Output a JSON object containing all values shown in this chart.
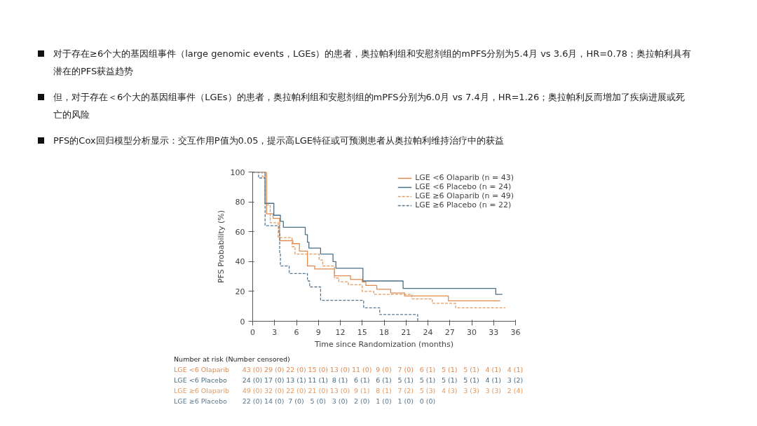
{
  "chart_data": {
    "type": "step",
    "xlabel": "Time since Randomization (months)",
    "ylabel": "PFS Probability (%)",
    "xlim": [
      0,
      36
    ],
    "xticks": [
      0,
      3,
      6,
      9,
      12,
      15,
      18,
      21,
      24,
      27,
      30,
      33,
      36
    ],
    "ylim": [
      0,
      100
    ],
    "yticks": [
      0,
      20,
      40,
      60,
      80,
      100
    ],
    "grid": false,
    "legend": "top right",
    "marker": "none",
    "series": [
      {
        "name": "LGE <6 Olaparib (n = 43)",
        "color": "#e08a50",
        "line_style": "solid",
        "x": [
          0,
          1.9,
          2.8,
          3.7,
          5.5,
          6.4,
          7.5,
          8.5,
          11.2,
          13.4,
          15.0,
          15.5,
          17.0,
          18.9,
          20.8,
          26.8,
          33.9
        ],
        "values": [
          100,
          72,
          69,
          54,
          52,
          47,
          37,
          35,
          30.5,
          28,
          26.4,
          24,
          21.4,
          19,
          17,
          13.7,
          13.7
        ]
      },
      {
        "name": "LGE <6 Placebo (n = 24)",
        "color": "#4a6f86",
        "line_style": "solid",
        "x": [
          0,
          1.7,
          2.9,
          3.8,
          4.2,
          7.2,
          7.5,
          7.7,
          9.3,
          11.0,
          11.4,
          15.1,
          20.6,
          33.3,
          34.2
        ],
        "values": [
          100,
          79,
          71,
          67,
          63,
          58,
          53,
          49,
          45,
          40,
          35.5,
          27,
          22,
          18,
          18
        ]
      },
      {
        "name": "LGE ≥6 Olaparib (n = 49)",
        "color": "#e39a62",
        "line_style": "dashed",
        "x": [
          0,
          1.3,
          1.7,
          2.4,
          3.5,
          5.4,
          5.8,
          9.1,
          9.6,
          11.2,
          11.8,
          13.1,
          15.0,
          16.6,
          21.8,
          24.6,
          27.8,
          34.6
        ],
        "values": [
          100,
          97,
          78,
          66,
          56,
          50,
          45,
          41,
          37,
          29,
          26.5,
          24.5,
          20,
          18,
          15,
          12,
          9,
          9
        ]
      },
      {
        "name": "LGE ≥6 Placebo (n = 22)",
        "color": "#5a7890",
        "line_style": "dashed",
        "x": [
          0,
          0.8,
          1.7,
          3.6,
          3.7,
          3.8,
          5.0,
          7.5,
          7.8,
          9.3,
          15.2,
          17.4,
          22.6
        ],
        "values": [
          100,
          96,
          64,
          59,
          45,
          37,
          32,
          27,
          23,
          14,
          9,
          4.5,
          0
        ]
      }
    ],
    "annotations": [
      "对于存在≥6个大的基因组事件（large genomic events，LGEs）的患者，奥拉帕利组和安慰剂组的mPFS分别为5.4月 vs 3.6月，HR=0.78；奥拉帕利具有潜在的PFS获益趋势",
      "但，对于存在＜6个大的基因组事件（LGEs）的患者，奥拉帕利组和安慰剂组的mPFS分别为6.0月 vs 7.4月，HR=1.26；奥拉帕利反而增加了疾病进展或死亡的风险",
      "PFS的Cox回归模型分析显示：交互作用P值为0.05，提示高LGE特征或可预测患者从奥拉帕利维持治疗中的获益",
      "Number at risk (Number censored)",
      "LGE <6 Olaparib",
      "43 (0) 29 (0) 22 (0) 15 (0) 13 (0) 11 (0) 9 (0) 7 (0) 6 (1) 5 (1) 5 (1) 4 (1) 4 (1)",
      "LGE <6 Placebo",
      "24 (0) 17 (0) 13 (1) 11 (1) 8 (1) 6 (1) 6 (1) 5 (1) 5 (1) 5 (1) 5 (1) 4 (1) 3 (2)",
      "LGE ≥6 Olaparib",
      "49 (0) 32 (0) 22 (0) 21 (0) 13 (0) 9 (1) 8 (1) 7 (2) 5 (3) 4 (3) 3 (3) 3 (3) 2 (4)",
      "LGE ≥6 Placebo",
      "22 (0) 14 (0) 7 (0) 5 (0) 3 (0) 2 (0) 1 (0) 1 (0) 0 (0)"
    ]
  }
}
